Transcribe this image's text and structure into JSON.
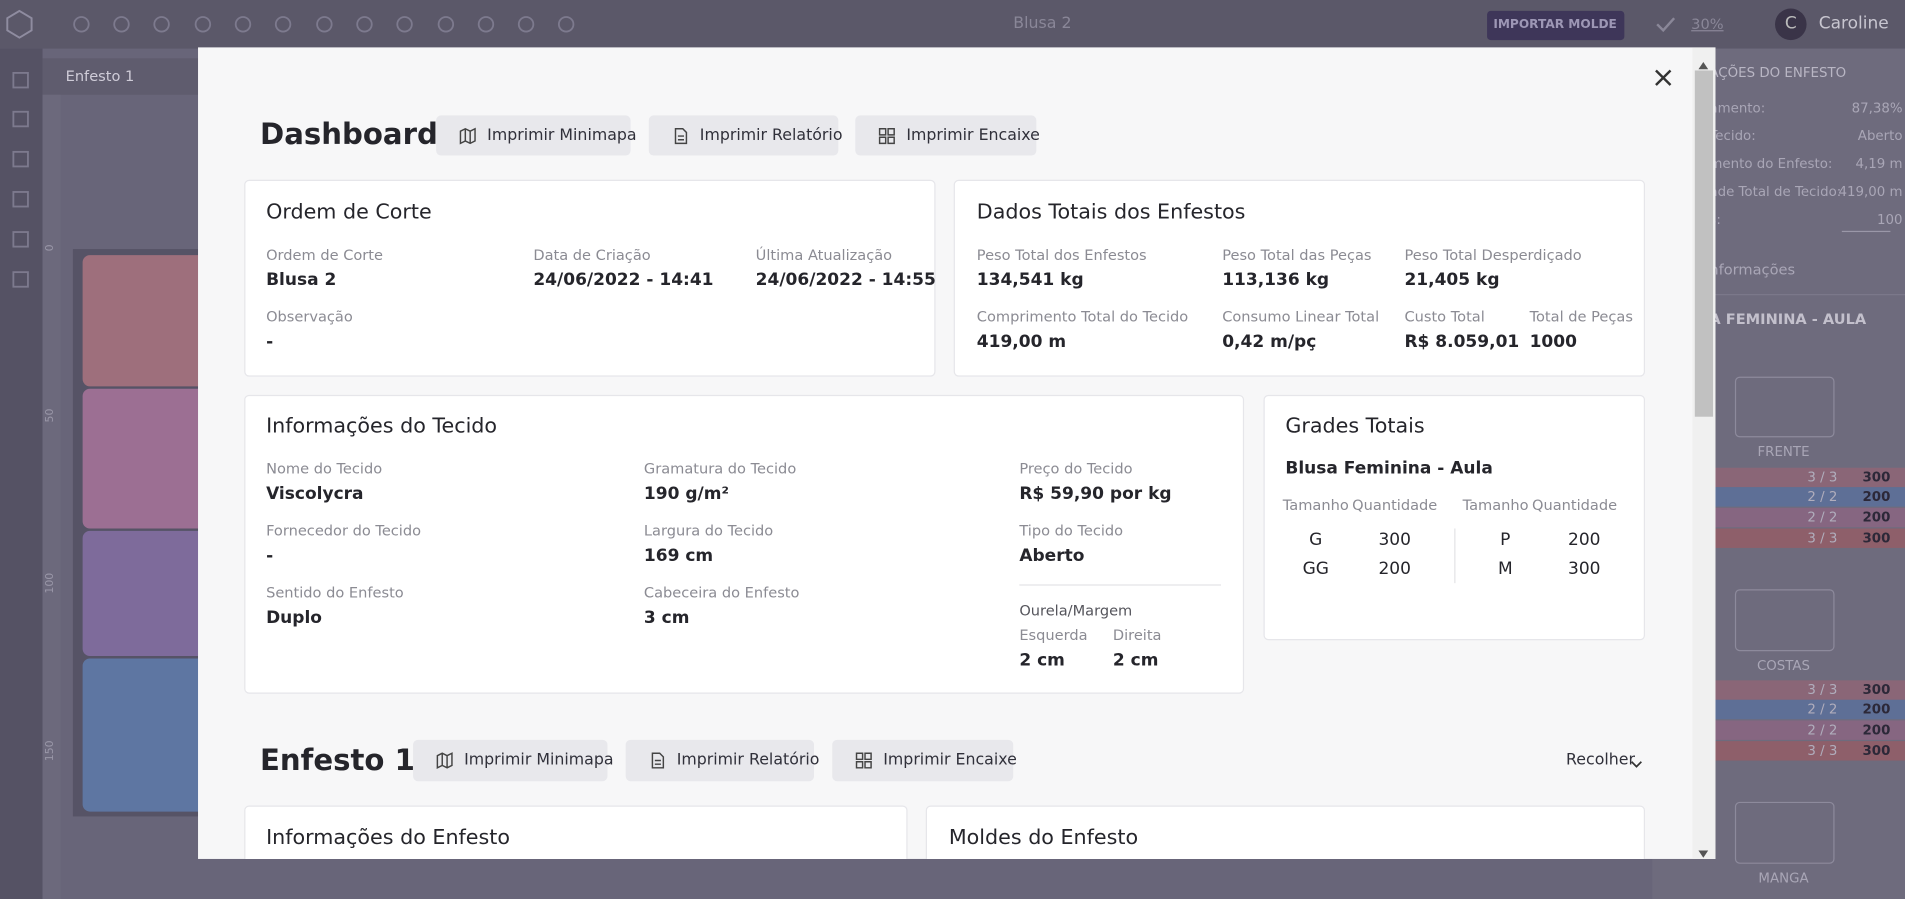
{
  "app": {
    "title": "Blusa 2",
    "import_button": "IMPORTAR MOLDE",
    "zoom": "30%",
    "user_initial": "C",
    "user_name": "Caroline",
    "tab": "Enfesto 1",
    "ruler": [
      "0",
      "50",
      "100",
      "150"
    ],
    "side_panel": {
      "heading": "AÇÕES DO ENFESTO",
      "rows": [
        {
          "label": "amento:",
          "value": "87,38%"
        },
        {
          "label": "Tecido:",
          "value": "Aberto"
        },
        {
          "label": "mento do Enfesto:",
          "value": "4,19 m"
        },
        {
          "label": "ade Total de Tecido:",
          "value": "419,00 m"
        },
        {
          "label": "s:",
          "value": "100"
        }
      ],
      "info": "nformações",
      "group": "A FEMININA - AULA",
      "pieces": [
        {
          "name": "FRENTE",
          "rows": [
            [
              "3 / 3",
              "300"
            ],
            [
              "2 / 2",
              "200"
            ],
            [
              "2 / 2",
              "200"
            ],
            [
              "3 / 3",
              "300"
            ]
          ]
        },
        {
          "name": "COSTAS",
          "rows": [
            [
              "3 / 3",
              "300"
            ],
            [
              "2 / 2",
              "200"
            ],
            [
              "2 / 2",
              "200"
            ],
            [
              "3 / 3",
              "300"
            ]
          ]
        },
        {
          "name": "MANGA",
          "rows": []
        }
      ]
    }
  },
  "modal": {
    "dashboard": {
      "title": "Dashboard",
      "buttons": [
        "Imprimir Minimapa",
        "Imprimir Relatório",
        "Imprimir Encaixe"
      ]
    },
    "cutting_order": {
      "title": "Ordem de Corte",
      "fields": [
        {
          "label": "Ordem de Corte",
          "value": "Blusa 2"
        },
        {
          "label": "Data de Criação",
          "value": "24/06/2022 - 14:41"
        },
        {
          "label": "Última Atualização",
          "value": "24/06/2022 - 14:55"
        },
        {
          "label": "Observação",
          "value": "-"
        }
      ]
    },
    "totals": {
      "title": "Dados Totais dos Enfestos",
      "fields": [
        {
          "label": "Peso Total dos Enfestos",
          "value": "134,541 kg"
        },
        {
          "label": "Peso Total das Peças",
          "value": "113,136 kg"
        },
        {
          "label": "Peso Total Desperdiçado",
          "value": "21,405 kg"
        },
        {
          "label": "Comprimento Total do Tecido",
          "value": "419,00 m"
        },
        {
          "label": "Consumo Linear Total",
          "value": "0,42 m/pç"
        },
        {
          "label": "Custo Total",
          "value": "R$ 8.059,01"
        },
        {
          "label": "Total de Peças",
          "value": "1000"
        }
      ]
    },
    "fabric": {
      "title": "Informações do Tecido",
      "fields": [
        {
          "label": "Nome do Tecido",
          "value": "Viscolycra"
        },
        {
          "label": "Fornecedor do Tecido",
          "value": "-"
        },
        {
          "label": "Sentido do Enfesto",
          "value": "Duplo"
        },
        {
          "label": "Gramatura do Tecido",
          "value": "190 g/m²"
        },
        {
          "label": "Largura do Tecido",
          "value": "169 cm"
        },
        {
          "label": "Cabeceira do Enfesto",
          "value": "3 cm"
        },
        {
          "label": "Preço do Tecido",
          "value": "R$ 59,90 por kg"
        },
        {
          "label": "Tipo do Tecido",
          "value": "Aberto"
        }
      ],
      "selvage": {
        "title": "Ourela/Margem",
        "fields": [
          {
            "label": "Esquerda",
            "value": "2 cm"
          },
          {
            "label": "Direita",
            "value": "2 cm"
          }
        ]
      }
    },
    "grades": {
      "title": "Grades Totais",
      "model": "Blusa Feminina - Aula",
      "headers": [
        "Tamanho",
        "Quantidade",
        "Tamanho",
        "Quantidade"
      ],
      "left": [
        [
          "G",
          "300"
        ],
        [
          "GG",
          "200"
        ]
      ],
      "right": [
        [
          "P",
          "200"
        ],
        [
          "M",
          "300"
        ]
      ]
    },
    "spread": {
      "title": "Enfesto 1",
      "buttons": [
        "Imprimir Minimapa",
        "Imprimir Relatório",
        "Imprimir Encaixe"
      ],
      "collapse": "Recolher",
      "cards": [
        "Informações do Enfesto",
        "Moldes do Enfesto"
      ]
    }
  }
}
